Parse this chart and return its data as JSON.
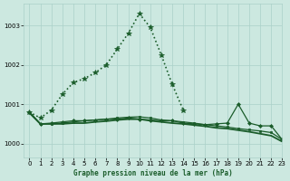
{
  "background_color": "#cce8e0",
  "grid_color": "#aad0c8",
  "line_color": "#1a5c2a",
  "title": "Graphe pression niveau de la mer (hPa)",
  "xlim": [
    -0.5,
    23
  ],
  "ylim": [
    999.65,
    1003.55
  ],
  "yticks": [
    1000,
    1001,
    1002,
    1003
  ],
  "xticks": [
    0,
    1,
    2,
    3,
    4,
    5,
    6,
    7,
    8,
    9,
    10,
    11,
    12,
    13,
    14,
    15,
    16,
    17,
    18,
    19,
    20,
    21,
    22,
    23
  ],
  "series": [
    {
      "x": [
        0,
        1,
        2,
        3,
        4,
        5,
        6,
        7,
        8,
        9,
        10,
        11,
        12,
        13,
        14
      ],
      "y": [
        1000.8,
        1000.65,
        1000.85,
        1001.25,
        1001.55,
        1001.65,
        1001.8,
        1002.0,
        1002.4,
        1002.8,
        1003.3,
        1002.95,
        1002.25,
        1001.5,
        1000.85
      ],
      "marker": "*",
      "linestyle": ":",
      "linewidth": 1.2,
      "markersize": 4
    },
    {
      "x": [
        0,
        1,
        2,
        3,
        4,
        5,
        6,
        7,
        8,
        9,
        10,
        11,
        12,
        13,
        14,
        15,
        16,
        17,
        18,
        19,
        20,
        21,
        22,
        23
      ],
      "y": [
        1000.8,
        1000.5,
        1000.5,
        1000.52,
        1000.55,
        1000.58,
        1000.6,
        1000.62,
        1000.65,
        1000.67,
        1000.68,
        1000.65,
        1000.6,
        1000.58,
        1000.55,
        1000.52,
        1000.48,
        1000.45,
        1000.42,
        1000.38,
        1000.35,
        1000.32,
        1000.28,
        1000.1
      ],
      "marker": "s",
      "linestyle": "-",
      "linewidth": 0.9,
      "markersize": 2
    },
    {
      "x": [
        0,
        1,
        2,
        3,
        4,
        5,
        6,
        7,
        8,
        9,
        10,
        11,
        12,
        13,
        14,
        15,
        16,
        17,
        18,
        19,
        20,
        21,
        22,
        23
      ],
      "y": [
        1000.8,
        1000.5,
        1000.52,
        1000.55,
        1000.58,
        1000.58,
        1000.6,
        1000.62,
        1000.62,
        1000.65,
        1000.62,
        1000.6,
        1000.58,
        1000.58,
        1000.52,
        1000.5,
        1000.48,
        1000.5,
        1000.52,
        1001.0,
        1000.52,
        1000.45,
        1000.45,
        1000.1
      ],
      "marker": "D",
      "linestyle": "-",
      "linewidth": 0.9,
      "markersize": 2
    },
    {
      "x": [
        0,
        1,
        2,
        3,
        4,
        5,
        6,
        7,
        8,
        9,
        10,
        11,
        12,
        13,
        14,
        15,
        16,
        17,
        18,
        19,
        20,
        21,
        22,
        23
      ],
      "y": [
        1000.78,
        1000.5,
        1000.5,
        1000.5,
        1000.52,
        1000.52,
        1000.55,
        1000.57,
        1000.6,
        1000.62,
        1000.62,
        1000.58,
        1000.55,
        1000.52,
        1000.5,
        1000.47,
        1000.44,
        1000.4,
        1000.38,
        1000.34,
        1000.3,
        1000.25,
        1000.2,
        1000.05
      ],
      "marker": null,
      "linestyle": "-",
      "linewidth": 1.3
    }
  ]
}
